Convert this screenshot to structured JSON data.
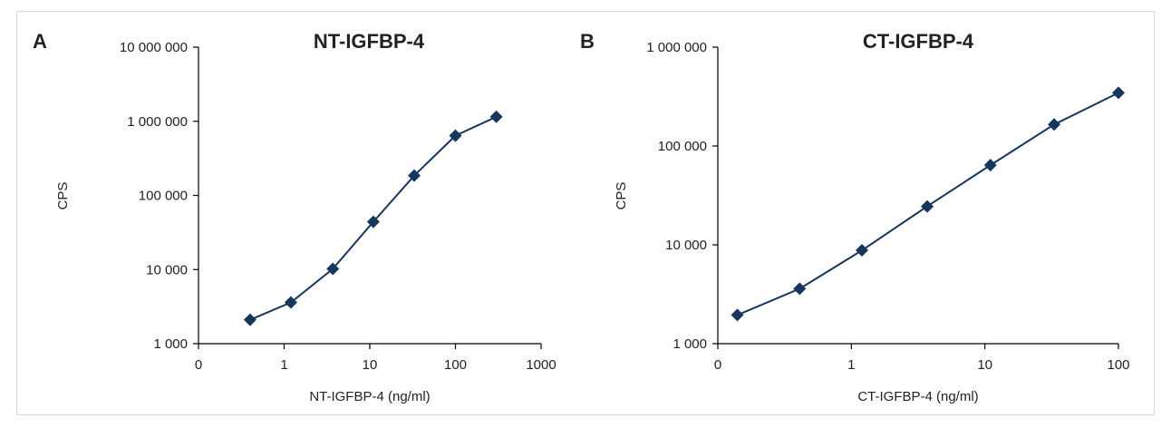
{
  "colors": {
    "series": "#17365d",
    "axis": "#000000",
    "frame": "#d9d9d9"
  },
  "chart_data": [
    {
      "panel_label": "A",
      "type": "line",
      "title": "NT-IGFBP-4",
      "xlabel": "NT-IGFBP-4 (ng/ml)",
      "ylabel": "CPS",
      "x_scale": "log",
      "y_scale": "log",
      "x_tick_labels": [
        "0",
        "1",
        "10",
        "100",
        "1000"
      ],
      "y_tick_labels": [
        "1 000",
        "10 000",
        "100 000",
        "1 000 000",
        "10 000 000"
      ],
      "xlim_decades": [
        -1,
        3
      ],
      "ylim": [
        1000,
        10000000
      ],
      "grid": false,
      "marker": "diamond",
      "series": [
        {
          "x": [
            0.4,
            1.2,
            3.7,
            11,
            33,
            100,
            300
          ],
          "y": [
            2100,
            3600,
            10200,
            44000,
            185000,
            640000,
            1150000
          ]
        }
      ]
    },
    {
      "panel_label": "B",
      "type": "line",
      "title": "CT-IGFBP-4",
      "xlabel": "CT-IGFBP-4 (ng/ml)",
      "ylabel": "CPS",
      "x_scale": "log",
      "y_scale": "log",
      "x_tick_labels": [
        "0",
        "1",
        "10",
        "100"
      ],
      "y_tick_labels": [
        "1 000",
        "10 000",
        "100 000",
        "1 000 000"
      ],
      "xlim_decades": [
        -1,
        2
      ],
      "ylim": [
        1000,
        1000000
      ],
      "grid": false,
      "marker": "diamond",
      "series": [
        {
          "x": [
            0.14,
            0.41,
            1.2,
            3.7,
            11,
            33,
            100
          ],
          "y": [
            1950,
            3600,
            8800,
            24500,
            64000,
            165000,
            345000
          ]
        }
      ]
    }
  ]
}
